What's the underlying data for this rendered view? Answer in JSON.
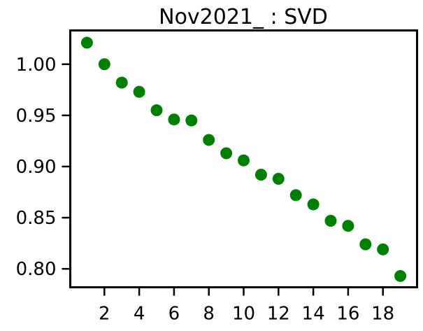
{
  "chart_data": {
    "type": "scatter",
    "title": "Nov2021_ : SVD",
    "xlabel": "",
    "ylabel": "",
    "xlim": [
      0.04,
      19.96
    ],
    "ylim": [
      0.782,
      1.033
    ],
    "xticks": [
      2,
      4,
      6,
      8,
      10,
      12,
      14,
      16,
      18
    ],
    "yticks": [
      0.8,
      0.85,
      0.9,
      0.95,
      1.0
    ],
    "xtick_labels": [
      "2",
      "4",
      "6",
      "8",
      "10",
      "12",
      "14",
      "16",
      "18"
    ],
    "ytick_labels": [
      "0.80",
      "0.85",
      "0.90",
      "0.95",
      "1.00"
    ],
    "grid": false,
    "marker_color": "#008000",
    "series": [
      {
        "x": [
          1,
          2,
          3,
          4,
          5,
          6,
          7,
          8,
          9,
          10,
          11,
          12,
          13,
          14,
          15,
          16,
          17,
          18,
          19
        ],
        "y": [
          1.021,
          1.0,
          0.982,
          0.973,
          0.955,
          0.946,
          0.945,
          0.926,
          0.913,
          0.906,
          0.892,
          0.888,
          0.872,
          0.863,
          0.847,
          0.842,
          0.824,
          0.819,
          0.793
        ]
      }
    ]
  }
}
